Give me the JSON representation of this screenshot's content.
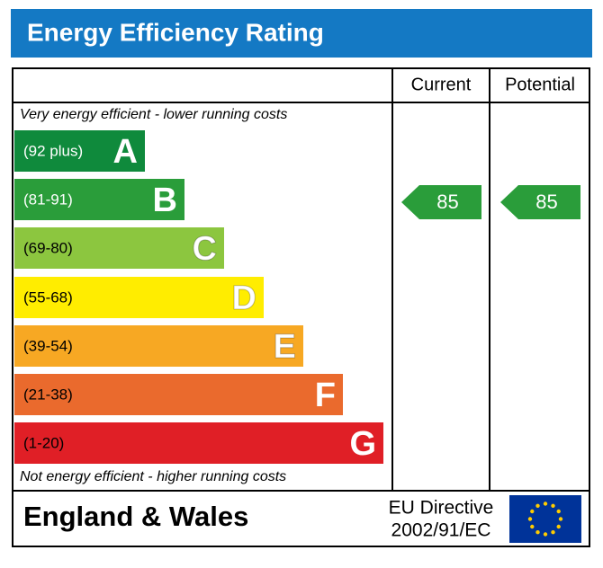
{
  "header": {
    "title": "Energy Efficiency Rating"
  },
  "columns": [
    "Current",
    "Potential"
  ],
  "top_note": "Very energy efficient - lower running costs",
  "bottom_note": "Not energy efficient - higher running costs",
  "bands": [
    {
      "range": "(92 plus)",
      "letter": "A",
      "color": "#0f8a3c"
    },
    {
      "range": "(81-91)",
      "letter": "B",
      "color": "#2a9d3a"
    },
    {
      "range": "(69-80)",
      "letter": "C",
      "color": "#8cc63f"
    },
    {
      "range": "(55-68)",
      "letter": "D",
      "color": "#ffed00"
    },
    {
      "range": "(39-54)",
      "letter": "E",
      "color": "#f7a823"
    },
    {
      "range": "(21-38)",
      "letter": "F",
      "color": "#ea6a2d"
    },
    {
      "range": "(1-20)",
      "letter": "G",
      "color": "#e01f26"
    }
  ],
  "current": {
    "value": 85,
    "color": "#2a9d3a"
  },
  "potential": {
    "value": 85,
    "color": "#2a9d3a"
  },
  "footer": {
    "region": "England & Wales",
    "directive": [
      "EU Directive",
      "2002/91/EC"
    ]
  }
}
